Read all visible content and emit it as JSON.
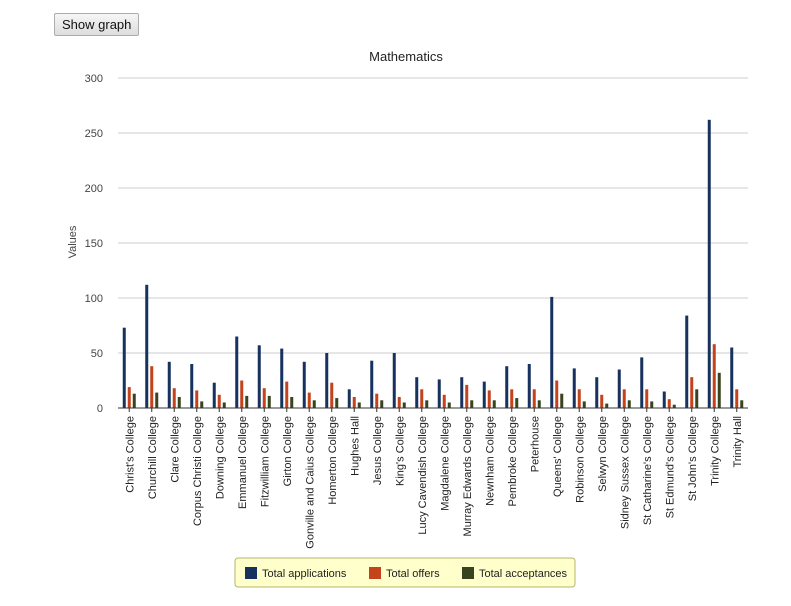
{
  "toolbar": {
    "show_graph_label": "Show graph"
  },
  "chart_data": {
    "type": "bar",
    "title": "Mathematics",
    "xlabel": "",
    "ylabel": "Values",
    "ylim": [
      0,
      300
    ],
    "yticks": [
      0,
      50,
      100,
      150,
      200,
      250,
      300
    ],
    "grid": true,
    "legend_position": "bottom",
    "categories": [
      "Christ's College",
      "Churchill College",
      "Clare College",
      "Corpus Christi College",
      "Downing College",
      "Emmanuel College",
      "Fitzwilliam College",
      "Girton College",
      "Gonville and Caius College",
      "Homerton College",
      "Hughes Hall",
      "Jesus College",
      "King's College",
      "Lucy Cavendish College",
      "Magdalene College",
      "Murray Edwards College",
      "Newnham College",
      "Pembroke College",
      "Peterhouse",
      "Queens' College",
      "Robinson College",
      "Selwyn College",
      "Sidney Sussex College",
      "St Catharine's College",
      "St Edmund's College",
      "St John's College",
      "Trinity College",
      "Trinity Hall"
    ],
    "series": [
      {
        "name": "Total applications",
        "color": "#17325e",
        "values": [
          73,
          112,
          42,
          40,
          23,
          65,
          57,
          54,
          42,
          50,
          17,
          43,
          50,
          28,
          26,
          28,
          24,
          38,
          40,
          101,
          36,
          28,
          35,
          46,
          15,
          84,
          262,
          55
        ]
      },
      {
        "name": "Total offers",
        "color": "#c4431b",
        "values": [
          19,
          38,
          18,
          16,
          12,
          25,
          18,
          24,
          14,
          23,
          10,
          13,
          10,
          17,
          12,
          21,
          16,
          17,
          17,
          25,
          17,
          12,
          17,
          17,
          8,
          28,
          58,
          17
        ]
      },
      {
        "name": "Total acceptances",
        "color": "#38431f",
        "values": [
          13,
          14,
          10,
          6,
          5,
          11,
          11,
          10,
          7,
          9,
          5,
          7,
          5,
          7,
          5,
          7,
          7,
          9,
          7,
          13,
          6,
          4,
          7,
          6,
          3,
          17,
          32,
          7
        ]
      }
    ]
  }
}
